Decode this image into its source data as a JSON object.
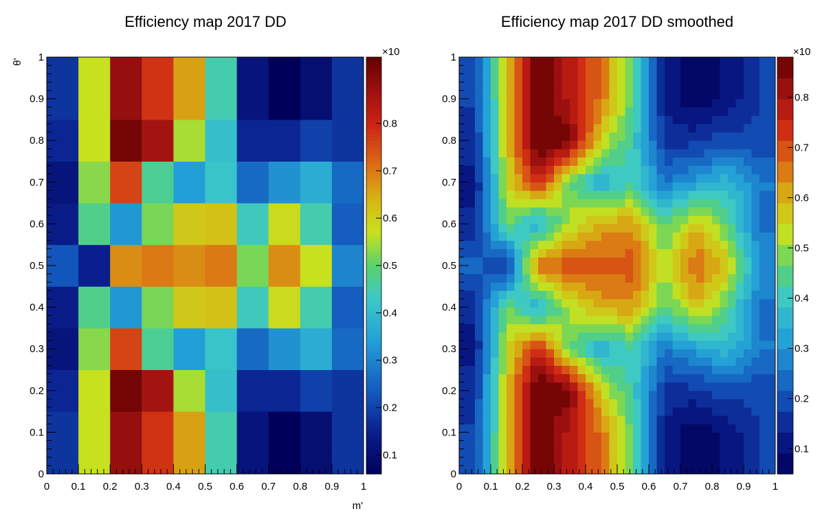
{
  "chart_data": [
    {
      "type": "heatmap",
      "title": "Efficiency map 2017 DD",
      "xlabel": "m'",
      "ylabel": "θ'",
      "xlim": [
        0,
        1
      ],
      "ylim": [
        0,
        1
      ],
      "x_ticks": [
        "0",
        "0.1",
        "0.2",
        "0.3",
        "0.4",
        "0.5",
        "0.6",
        "0.7",
        "0.8",
        "0.9",
        "1"
      ],
      "y_ticks": [
        "0",
        "0.1",
        "0.2",
        "0.3",
        "0.4",
        "0.5",
        "0.6",
        "0.7",
        "0.8",
        "0.9",
        "1"
      ],
      "x_edges": [
        0,
        0.1,
        0.2,
        0.3,
        0.4,
        0.5,
        0.6,
        0.7,
        0.8,
        0.9,
        1.0
      ],
      "y_edges": [
        0,
        0.05,
        0.15,
        0.25,
        0.35,
        0.45,
        0.55,
        0.65,
        0.75,
        0.85,
        0.95,
        1.0
      ],
      "values_bottom_to_top": [
        [
          0.18,
          0.57,
          0.88,
          0.78,
          0.66,
          0.45,
          0.12,
          0.06,
          0.1,
          0.18
        ],
        [
          0.18,
          0.57,
          0.88,
          0.78,
          0.66,
          0.45,
          0.12,
          0.06,
          0.1,
          0.18
        ],
        [
          0.16,
          0.57,
          0.92,
          0.86,
          0.55,
          0.41,
          0.16,
          0.16,
          0.2,
          0.18
        ],
        [
          0.12,
          0.53,
          0.76,
          0.47,
          0.34,
          0.42,
          0.26,
          0.32,
          0.37,
          0.26
        ],
        [
          0.14,
          0.48,
          0.33,
          0.52,
          0.61,
          0.62,
          0.44,
          0.58,
          0.45,
          0.24
        ],
        [
          0.23,
          0.15,
          0.68,
          0.7,
          0.68,
          0.7,
          0.52,
          0.68,
          0.57,
          0.3
        ],
        [
          0.14,
          0.48,
          0.33,
          0.52,
          0.61,
          0.62,
          0.44,
          0.58,
          0.45,
          0.24
        ],
        [
          0.12,
          0.53,
          0.76,
          0.47,
          0.34,
          0.42,
          0.26,
          0.32,
          0.37,
          0.26
        ],
        [
          0.16,
          0.57,
          0.92,
          0.86,
          0.55,
          0.41,
          0.16,
          0.16,
          0.2,
          0.18
        ],
        [
          0.18,
          0.57,
          0.88,
          0.78,
          0.66,
          0.45,
          0.12,
          0.06,
          0.1,
          0.18
        ],
        [
          0.18,
          0.57,
          0.88,
          0.78,
          0.66,
          0.45,
          0.12,
          0.06,
          0.1,
          0.18
        ]
      ],
      "zlim": [
        0.06,
        0.94
      ],
      "z_ticks": [
        "0.1",
        "0.2",
        "0.3",
        "0.4",
        "0.5",
        "0.6",
        "0.7",
        "0.8"
      ],
      "z_exponent_label": "×10",
      "palette": "continuous"
    },
    {
      "type": "heatmap",
      "title": "Efficiency map 2017 DD smoothed",
      "xlabel": "",
      "ylabel": "",
      "xlim": [
        0,
        1
      ],
      "ylim": [
        0,
        1
      ],
      "x_ticks": [
        "0",
        "0.1",
        "0.2",
        "0.3",
        "0.4",
        "0.5",
        "0.6",
        "0.7",
        "0.8",
        "0.9",
        "1"
      ],
      "y_ticks": [
        "0",
        "0.1",
        "0.2",
        "0.3",
        "0.4",
        "0.5",
        "0.6",
        "0.7",
        "0.8",
        "0.9",
        "1"
      ],
      "x_bins": 40,
      "y_bins": 50,
      "smoothed_from": 0,
      "zlim": [
        0.05,
        0.88
      ],
      "z_ticks": [
        "0.1",
        "0.2",
        "0.3",
        "0.4",
        "0.5",
        "0.6",
        "0.7",
        "0.8"
      ],
      "z_exponent_label": "×10",
      "palette": "discrete",
      "palette_levels": 20
    }
  ],
  "colors": {
    "frame": "#000000",
    "background": "#ffffff"
  }
}
